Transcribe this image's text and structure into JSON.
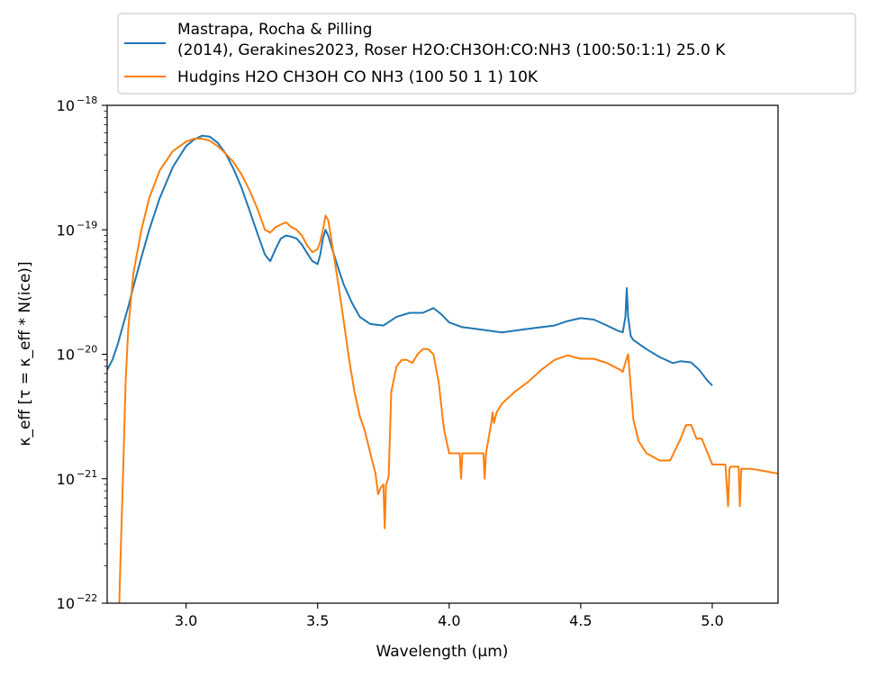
{
  "chart_data": {
    "type": "line",
    "title": "",
    "xlabel": "Wavelength (μm)",
    "ylabel": "κ_eff [τ = κ_eff * N(ice)]",
    "xlim": [
      2.7,
      5.25
    ],
    "ylim": [
      1e-22,
      1e-18
    ],
    "yscale": "log",
    "grid": false,
    "legend_position": "top, above plot",
    "x_ticks": [
      {
        "value": 3.0,
        "label": "3.0"
      },
      {
        "value": 3.5,
        "label": "3.5"
      },
      {
        "value": 4.0,
        "label": "4.0"
      },
      {
        "value": 4.5,
        "label": "4.5"
      },
      {
        "value": 5.0,
        "label": "5.0"
      }
    ],
    "y_ticks": [
      {
        "value": 1e-22,
        "base": "10",
        "exp": "−22"
      },
      {
        "value": 1e-21,
        "base": "10",
        "exp": "−21"
      },
      {
        "value": 1e-20,
        "base": "10",
        "exp": "−20"
      },
      {
        "value": 1e-19,
        "base": "10",
        "exp": "−19"
      },
      {
        "value": 1e-18,
        "base": "10",
        "exp": "−18"
      }
    ],
    "series": [
      {
        "name_lines": [
          "Mastrapa, Rocha & Pilling",
          "(2014), Gerakines2023, Roser H2O:CH3OH:CO:NH3 (100:50:1:1) 25.0 K"
        ],
        "color": "#1f77b4",
        "x": [
          2.7,
          2.72,
          2.74,
          2.76,
          2.78,
          2.8,
          2.83,
          2.86,
          2.9,
          2.95,
          3.0,
          3.03,
          3.06,
          3.09,
          3.12,
          3.15,
          3.18,
          3.21,
          3.24,
          3.27,
          3.3,
          3.32,
          3.34,
          3.36,
          3.38,
          3.4,
          3.42,
          3.44,
          3.46,
          3.48,
          3.5,
          3.51,
          3.52,
          3.53,
          3.54,
          3.56,
          3.58,
          3.6,
          3.63,
          3.66,
          3.7,
          3.75,
          3.8,
          3.85,
          3.9,
          3.94,
          3.97,
          4.0,
          4.05,
          4.1,
          4.15,
          4.2,
          4.25,
          4.3,
          4.35,
          4.4,
          4.45,
          4.5,
          4.55,
          4.6,
          4.64,
          4.66,
          4.67,
          4.675,
          4.68,
          4.69,
          4.7,
          4.75,
          4.8,
          4.85,
          4.88,
          4.92,
          4.95,
          4.98,
          5.0
        ],
        "y": [
          7.5e-21,
          9e-21,
          1.2e-20,
          1.7e-20,
          2.4e-20,
          3.5e-20,
          6e-20,
          1e-19,
          1.8e-19,
          3.2e-19,
          4.7e-19,
          5.3e-19,
          5.7e-19,
          5.6e-19,
          5e-19,
          4.1e-19,
          3.1e-19,
          2.2e-19,
          1.45e-19,
          9.5e-20,
          6.3e-20,
          5.6e-20,
          7e-20,
          8.5e-20,
          9e-20,
          8.8e-20,
          8.5e-20,
          7.6e-20,
          6.5e-20,
          5.6e-20,
          5.3e-20,
          6.3e-20,
          8.5e-20,
          1e-19,
          9e-20,
          6.5e-20,
          4.8e-20,
          3.6e-20,
          2.6e-20,
          2e-20,
          1.75e-20,
          1.7e-20,
          2e-20,
          2.15e-20,
          2.15e-20,
          2.35e-20,
          2.1e-20,
          1.8e-20,
          1.65e-20,
          1.6e-20,
          1.55e-20,
          1.5e-20,
          1.55e-20,
          1.6e-20,
          1.65e-20,
          1.7e-20,
          1.85e-20,
          1.95e-20,
          1.9e-20,
          1.7e-20,
          1.55e-20,
          1.5e-20,
          2e-20,
          3.4e-20,
          2e-20,
          1.4e-20,
          1.3e-20,
          1.1e-20,
          9.5e-21,
          8.5e-21,
          8.8e-21,
          8.6e-21,
          7.5e-21,
          6.2e-21,
          5.6e-21
        ]
      },
      {
        "name_lines": [
          "Hudgins H2O CH3OH CO NH3 (100 50 1 1) 10K"
        ],
        "color": "#ff7f0e",
        "x": [
          2.745,
          2.75,
          2.76,
          2.77,
          2.78,
          2.8,
          2.83,
          2.86,
          2.9,
          2.95,
          3.0,
          3.03,
          3.06,
          3.09,
          3.12,
          3.15,
          3.18,
          3.21,
          3.24,
          3.27,
          3.3,
          3.32,
          3.34,
          3.36,
          3.38,
          3.4,
          3.42,
          3.44,
          3.46,
          3.48,
          3.5,
          3.51,
          3.52,
          3.53,
          3.54,
          3.55,
          3.56,
          3.58,
          3.6,
          3.62,
          3.64,
          3.66,
          3.68,
          3.7,
          3.72,
          3.73,
          3.74,
          3.75,
          3.755,
          3.76,
          3.765,
          3.77,
          3.78,
          3.8,
          3.82,
          3.84,
          3.86,
          3.88,
          3.9,
          3.92,
          3.94,
          3.96,
          3.98,
          4.0,
          4.02,
          4.03,
          4.04,
          4.045,
          4.05,
          4.055,
          4.06,
          4.1,
          4.13,
          4.135,
          4.14,
          4.16,
          4.165,
          4.17,
          4.18,
          4.2,
          4.25,
          4.3,
          4.35,
          4.4,
          4.45,
          4.5,
          4.55,
          4.6,
          4.65,
          4.66,
          4.67,
          4.68,
          4.69,
          4.7,
          4.72,
          4.75,
          4.8,
          4.84,
          4.88,
          4.9,
          4.92,
          4.94,
          4.96,
          5.0,
          5.05,
          5.06,
          5.065,
          5.07,
          5.08,
          5.1,
          5.105,
          5.11,
          5.15,
          5.2,
          5.25
        ],
        "y": [
          8e-23,
          2e-22,
          1e-21,
          6e-21,
          1.6e-20,
          4.5e-20,
          1e-19,
          1.8e-19,
          3e-19,
          4.3e-19,
          5.1e-19,
          5.4e-19,
          5.4e-19,
          5.2e-19,
          4.7e-19,
          4.1e-19,
          3.5e-19,
          2.8e-19,
          2.1e-19,
          1.5e-19,
          1e-19,
          9.5e-20,
          1.05e-19,
          1.1e-19,
          1.15e-19,
          1.05e-19,
          1e-19,
          9e-20,
          7.5e-20,
          6.6e-20,
          7e-20,
          8e-20,
          1e-19,
          1.3e-19,
          1.2e-19,
          9e-20,
          6.5e-20,
          3.5e-20,
          1.8e-20,
          9e-21,
          5e-21,
          3.2e-21,
          2.4e-21,
          1.6e-21,
          1.1e-21,
          7.5e-22,
          8.5e-22,
          9e-22,
          4e-22,
          9e-22,
          9.5e-22,
          1.05e-21,
          5e-21,
          8e-21,
          9e-21,
          9e-21,
          8.5e-21,
          1e-20,
          1.1e-20,
          1.1e-20,
          1e-20,
          6e-21,
          2.5e-21,
          1.6e-21,
          1.6e-21,
          1.6e-21,
          1.6e-21,
          1e-21,
          1.6e-21,
          1.6e-21,
          1.6e-21,
          1.6e-21,
          1.6e-21,
          1e-21,
          1.6e-21,
          2.8e-21,
          3.4e-21,
          2.8e-21,
          3.4e-21,
          4e-21,
          5e-21,
          6e-21,
          7.5e-21,
          9e-21,
          9.8e-21,
          9.2e-21,
          9.2e-21,
          8.5e-21,
          7.5e-21,
          7.2e-21,
          8.6e-21,
          1e-20,
          5.5e-21,
          3e-21,
          2e-21,
          1.6e-21,
          1.4e-21,
          1.4e-21,
          2.1e-21,
          2.7e-21,
          2.7e-21,
          2.1e-21,
          2.1e-21,
          1.3e-21,
          1.3e-21,
          6e-22,
          1.2e-21,
          1.25e-21,
          1.25e-21,
          1.25e-21,
          6e-22,
          1.2e-21,
          1.2e-21,
          1.15e-21,
          1.1e-21
        ]
      }
    ]
  }
}
